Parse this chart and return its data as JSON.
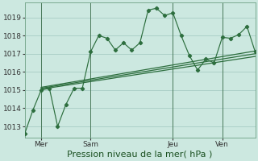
{
  "background_color": "#cce8e0",
  "grid_color": "#a8ccc4",
  "line_color": "#2d6e3e",
  "ylabel_ticks": [
    1013,
    1014,
    1015,
    1016,
    1017,
    1018,
    1019
  ],
  "ylim": [
    1012.4,
    1019.8
  ],
  "xlabel": "Pression niveau de la mer( hPa )",
  "xlabel_fontsize": 8,
  "tick_fontsize": 6.5,
  "xtick_labels": [
    "Mer",
    "Sam",
    "Jeu",
    "Ven"
  ],
  "xtick_positions": [
    2,
    8,
    18,
    24
  ],
  "xlim": [
    0,
    28
  ],
  "n_points": 29,
  "series1_x": [
    0,
    1,
    2,
    3,
    4,
    5,
    6,
    7,
    8,
    9,
    10,
    11,
    12,
    13,
    14,
    15,
    16,
    17,
    18,
    19,
    20,
    21,
    22,
    23,
    24,
    25,
    26,
    27,
    28
  ],
  "series1_y": [
    1012.6,
    1013.9,
    1015.0,
    1015.1,
    1013.0,
    1014.2,
    1015.1,
    1015.1,
    1017.1,
    1018.0,
    1017.85,
    1017.2,
    1017.6,
    1017.2,
    1017.6,
    1019.4,
    1019.5,
    1019.1,
    1019.25,
    1018.0,
    1016.9,
    1016.1,
    1016.7,
    1016.5,
    1017.9,
    1017.85,
    1018.05,
    1018.5,
    1017.1
  ],
  "series2_x": [
    2,
    28
  ],
  "series2_y": [
    1015.05,
    1016.85
  ],
  "series3_x": [
    2,
    28
  ],
  "series3_y": [
    1015.1,
    1017.0
  ],
  "series4_x": [
    2,
    28
  ],
  "series4_y": [
    1015.15,
    1017.15
  ],
  "vline_positions": [
    2,
    8,
    18,
    24
  ],
  "vline_color": "#4a7a5a",
  "spine_color": "#7aaa90"
}
